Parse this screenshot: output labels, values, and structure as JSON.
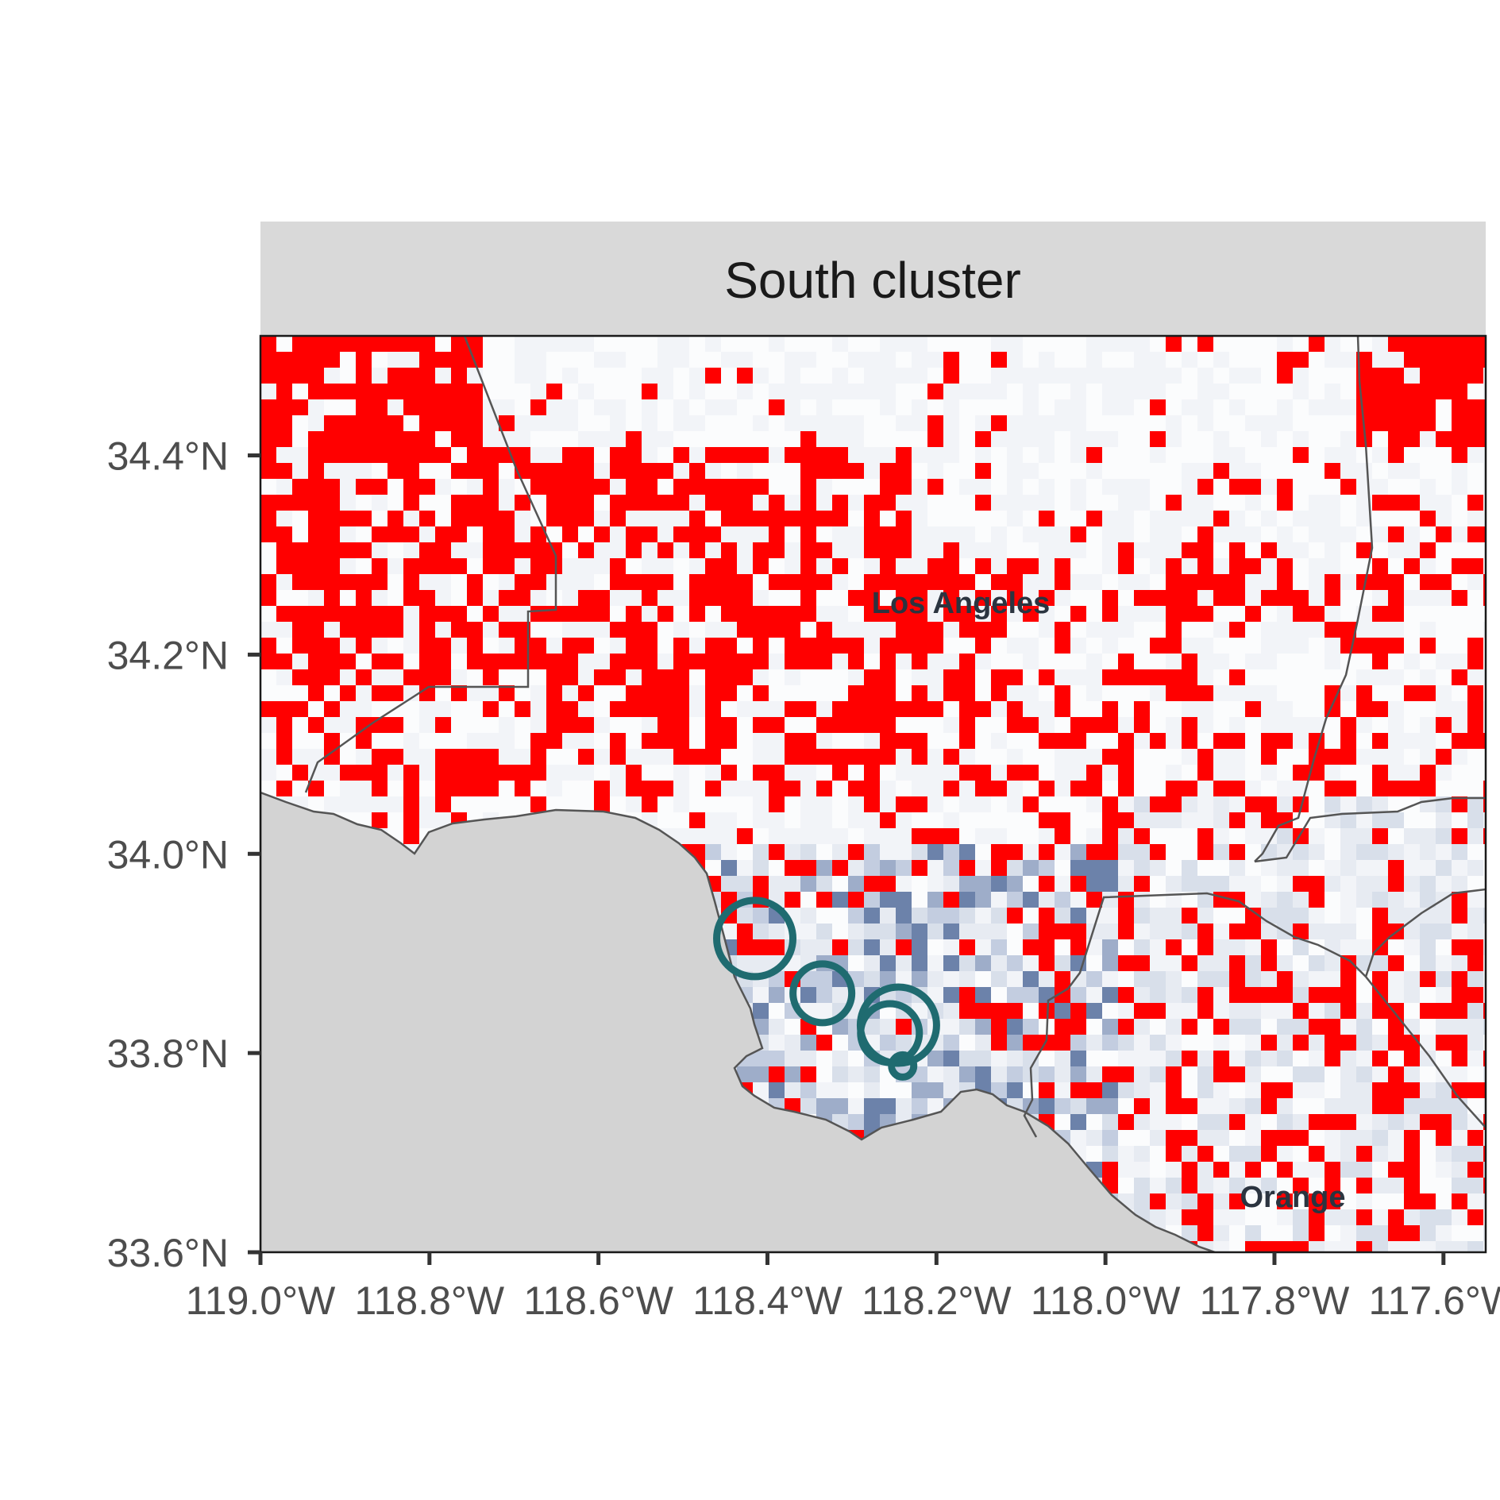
{
  "panel": {
    "title": "South cluster"
  },
  "chart_data": {
    "type": "map",
    "title": "South cluster",
    "xlim": [
      -119.0,
      -117.55
    ],
    "ylim": [
      33.6,
      34.52
    ],
    "x_ticks": [
      {
        "value": -119.0,
        "label": "119.0°W"
      },
      {
        "value": -118.8,
        "label": "118.8°W"
      },
      {
        "value": -118.6,
        "label": "118.6°W"
      },
      {
        "value": -118.4,
        "label": "118.4°W"
      },
      {
        "value": -118.2,
        "label": "118.2°W"
      },
      {
        "value": -118.0,
        "label": "118.0°W"
      },
      {
        "value": -117.8,
        "label": "117.8°W"
      },
      {
        "value": -117.6,
        "label": "117.6°W"
      }
    ],
    "y_ticks": [
      {
        "value": 33.6,
        "label": "33.6°N"
      },
      {
        "value": 33.8,
        "label": "33.8°N"
      },
      {
        "value": 34.0,
        "label": "34.0°N"
      },
      {
        "value": 34.2,
        "label": "34.2°N"
      },
      {
        "value": 34.4,
        "label": "34.4°N"
      }
    ],
    "county_labels": [
      {
        "name": "Los Angeles",
        "lon": -118.22,
        "lat": 34.25
      },
      {
        "name": "Orange",
        "lon": -117.77,
        "lat": 33.66
      }
    ],
    "cluster_circles": [
      {
        "lon": -118.415,
        "lat": 33.915,
        "size": "large"
      },
      {
        "lon": -118.335,
        "lat": 33.86,
        "size": "medium"
      },
      {
        "lon": -118.245,
        "lat": 33.828,
        "size": "large"
      },
      {
        "lon": -118.255,
        "lat": 33.82,
        "size": "medium"
      },
      {
        "lon": -118.24,
        "lat": 33.787,
        "size": "small"
      }
    ],
    "colors": {
      "highlight": "#ff0000",
      "ocean": "#d3d3d3",
      "strip": "#d9d9d9",
      "circle": "#1f6b70",
      "low": "#fbfcfd",
      "high": "#0b2f6b"
    }
  }
}
